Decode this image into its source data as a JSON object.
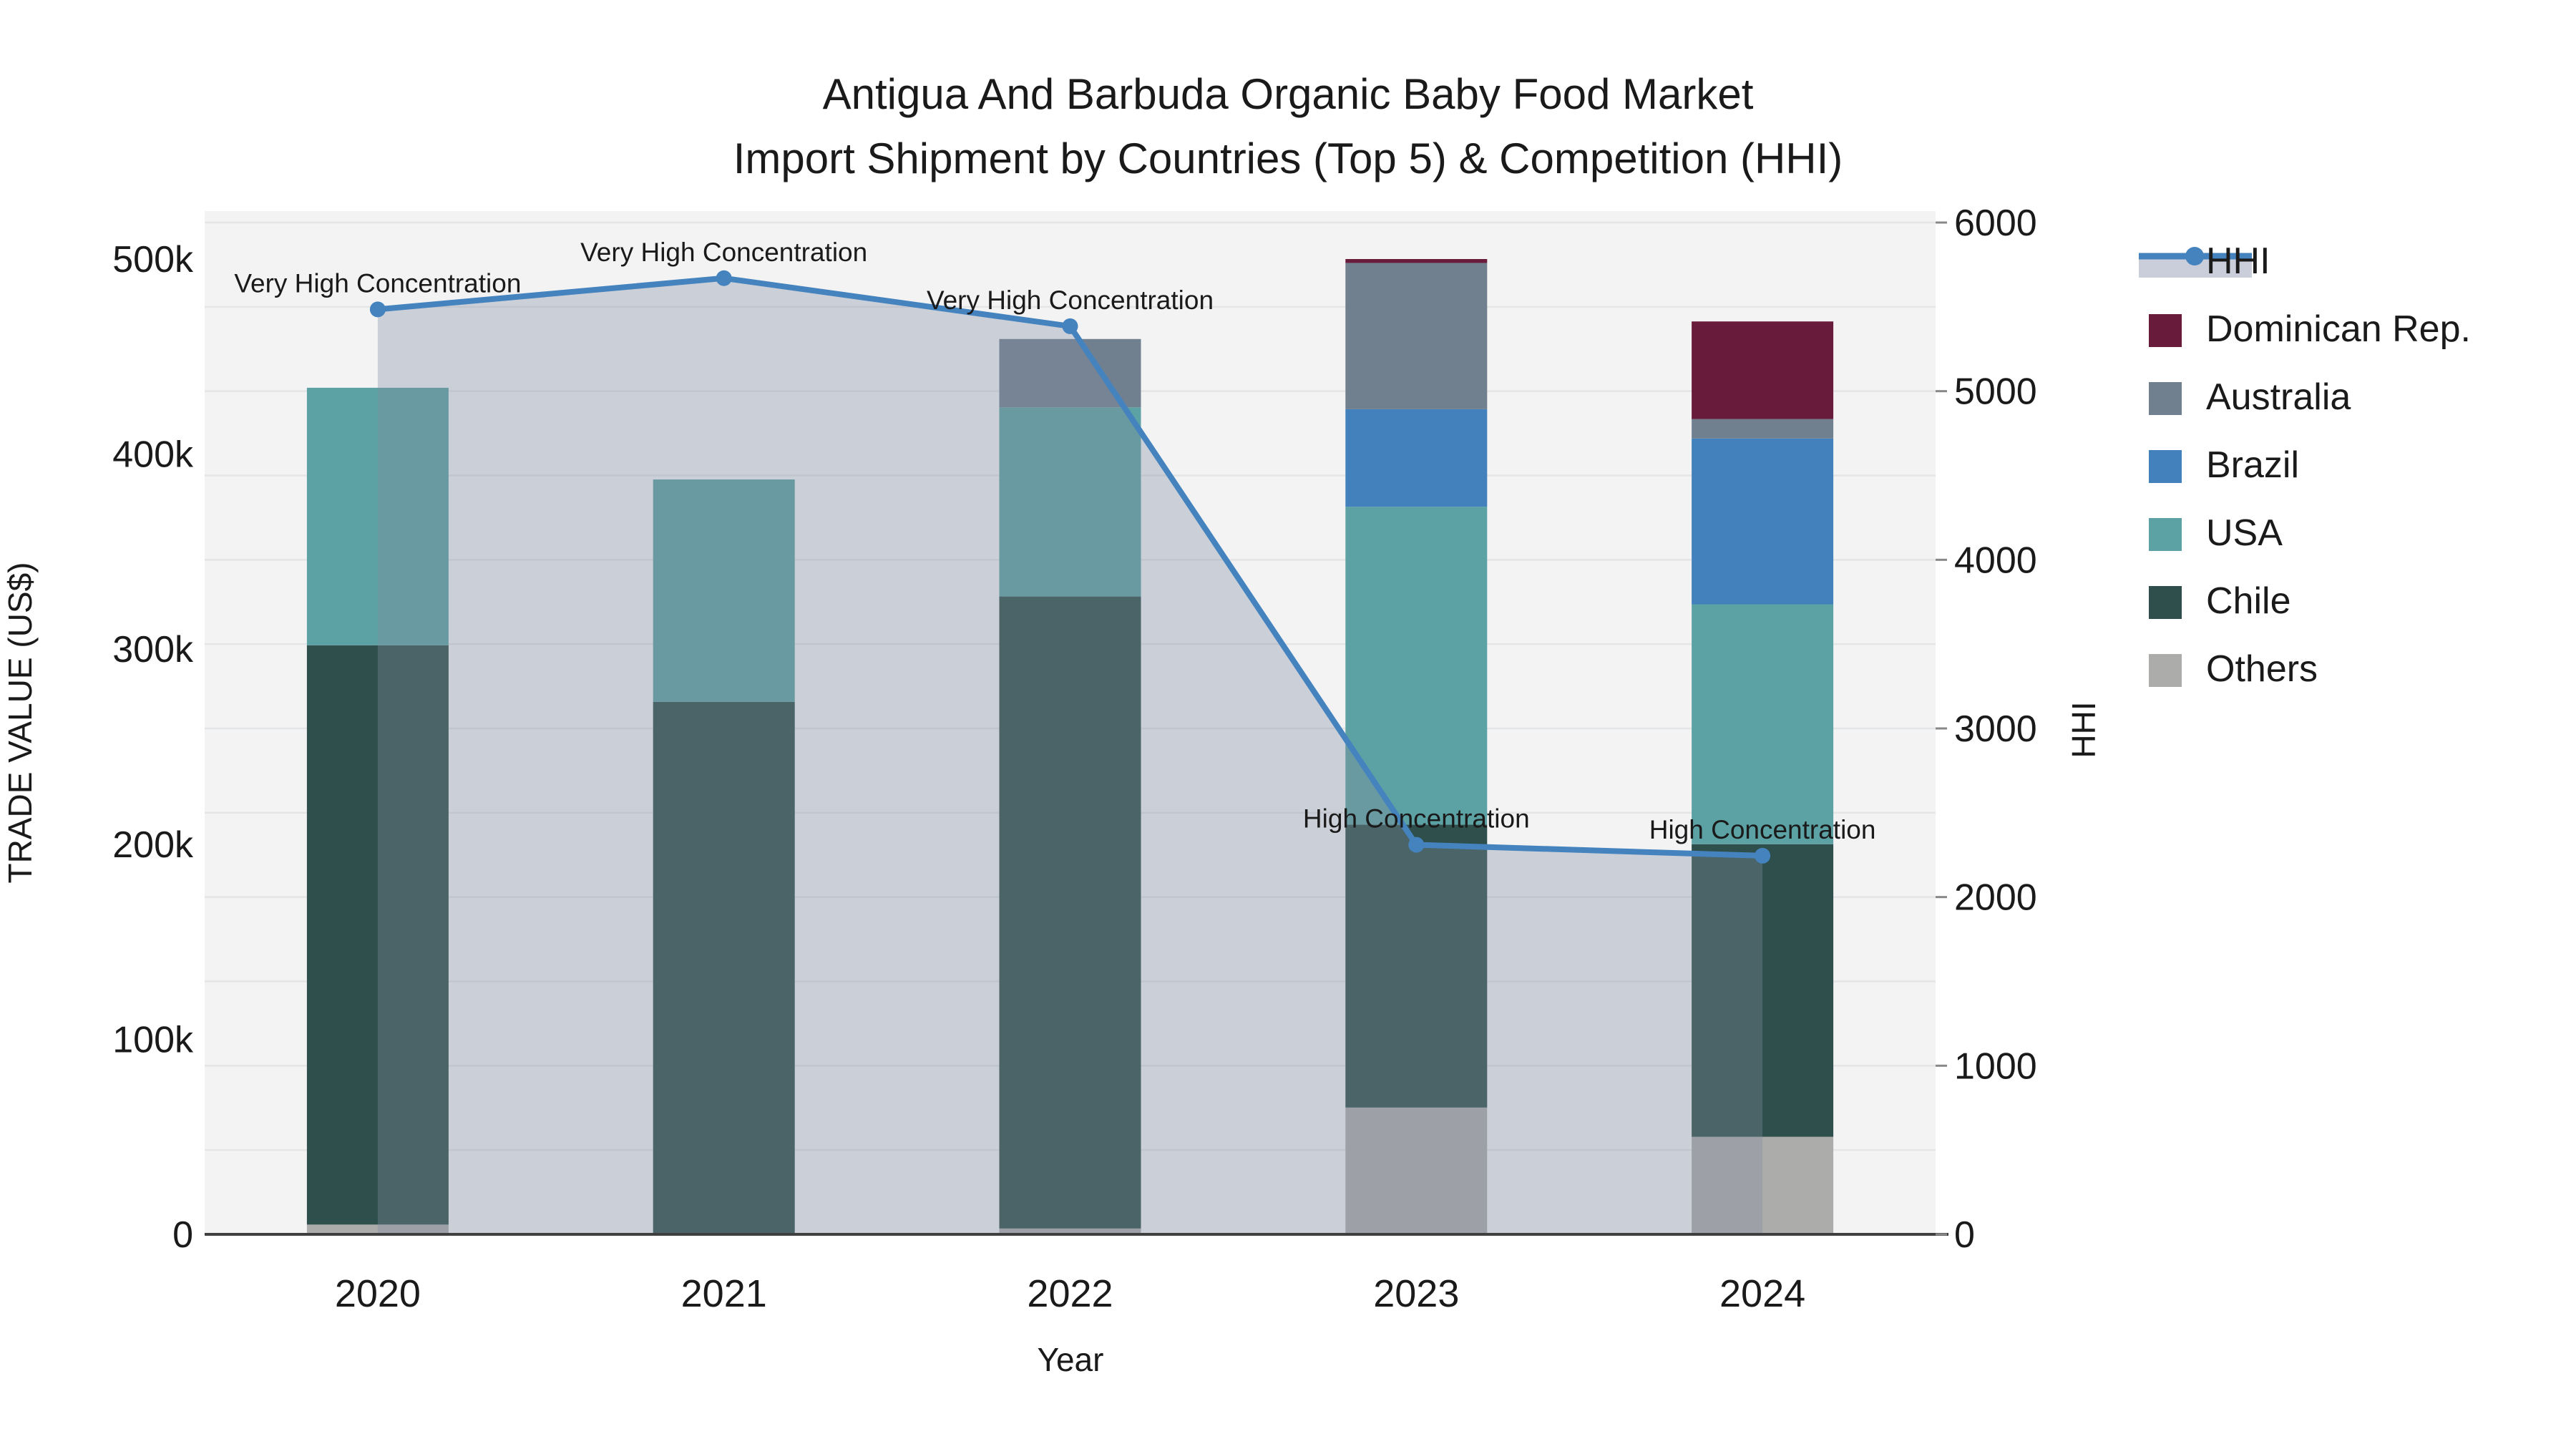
{
  "title": {
    "line1": "Antigua And Barbuda Organic Baby Food Market",
    "line2": "Import Shipment by Countries (Top 5) & Competition (HHI)"
  },
  "axes": {
    "y_left": {
      "title": "TRADE VALUE (US$)",
      "tick_labels": [
        "0",
        "100k",
        "200k",
        "300k",
        "400k",
        "500k"
      ],
      "tick_values": [
        0,
        100000,
        200000,
        300000,
        400000,
        500000
      ]
    },
    "y_right": {
      "title": "HHI",
      "tick_labels": [
        "0",
        "1000",
        "2000",
        "3000",
        "4000",
        "5000",
        "6000"
      ],
      "tick_values": [
        0,
        1000,
        2000,
        3000,
        4000,
        5000,
        6000
      ]
    },
    "x": {
      "title": "Year",
      "categories": [
        "2020",
        "2021",
        "2022",
        "2023",
        "2024"
      ]
    }
  },
  "legend": {
    "items": [
      {
        "label": "HHI",
        "marker": "line",
        "color": "#4583BE"
      },
      {
        "label": "Dominican Rep.",
        "marker": "swatch",
        "color": "#691B3C"
      },
      {
        "label": "Australia",
        "marker": "swatch",
        "color": "#71808F"
      },
      {
        "label": "Brazil",
        "marker": "swatch",
        "color": "#4381BC"
      },
      {
        "label": "USA",
        "marker": "swatch",
        "color": "#5CA1A3"
      },
      {
        "label": "Chile",
        "marker": "swatch",
        "color": "#2E4F4B"
      },
      {
        "label": "Others",
        "marker": "swatch",
        "color": "#ACACAB"
      }
    ]
  },
  "chart_data": {
    "type": "bar+line",
    "categories": [
      "2020",
      "2021",
      "2022",
      "2023",
      "2024"
    ],
    "bar_stack_order_bottom_to_top": [
      "Others",
      "Chile",
      "USA",
      "Brazil",
      "Australia",
      "Dominican Rep."
    ],
    "bar_series": [
      {
        "name": "Others",
        "color": "#ACACAB",
        "values": [
          5000,
          0,
          3000,
          65000,
          50000
        ]
      },
      {
        "name": "Chile",
        "color": "#2E4F4B",
        "values": [
          297000,
          273000,
          324000,
          145000,
          150000
        ]
      },
      {
        "name": "USA",
        "color": "#5CA1A3",
        "values": [
          132000,
          114000,
          97000,
          163000,
          123000
        ]
      },
      {
        "name": "Brazil",
        "color": "#4381BC",
        "values": [
          0,
          0,
          0,
          50000,
          85000
        ]
      },
      {
        "name": "Australia",
        "color": "#71808F",
        "values": [
          0,
          0,
          35000,
          75000,
          10000
        ]
      },
      {
        "name": "Dominican Rep.",
        "color": "#691B3C",
        "values": [
          0,
          0,
          0,
          2000,
          50000
        ]
      }
    ],
    "line_series": {
      "name": "HHI",
      "axis": "y_right",
      "color": "#4583BE",
      "area_fill": "rgba(130,140,160,0.35)",
      "values": [
        5485,
        5670,
        5385,
        2310,
        2245
      ]
    },
    "annotations": [
      {
        "category": "2020",
        "text": "Very High Concentration"
      },
      {
        "category": "2021",
        "text": "Very High Concentration"
      },
      {
        "category": "2022",
        "text": "Very High Concentration"
      },
      {
        "category": "2023",
        "text": "High Concentration"
      },
      {
        "category": "2024",
        "text": "High Concentration"
      }
    ],
    "ylabel": "TRADE VALUE (US$)",
    "y2label": "HHI",
    "xlabel": "Year",
    "ylim": [
      0,
      525000
    ],
    "y2lim": [
      0,
      6000
    ],
    "grid": true,
    "legend_position": "right"
  },
  "colors": {
    "plot_background": "#F3F3F4",
    "gridline": "#E4E5E7",
    "axis_line": "#3F3F3F",
    "hhi_line": "#4583BE",
    "hhi_fill_swatch": "#C9CEDA",
    "text": "#1a1a1a"
  }
}
